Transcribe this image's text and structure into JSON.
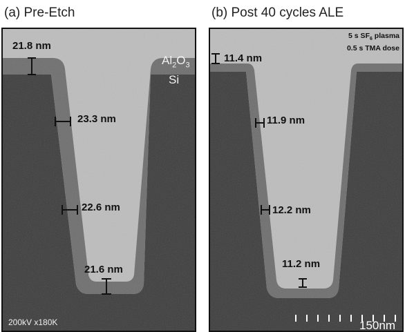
{
  "panel_a": {
    "title": "(a) Pre-Etch",
    "measurements": [
      "21.8 nm",
      "23.3 nm",
      "22.6 nm",
      "21.6 nm"
    ],
    "material_top": "Al",
    "material_top_sub1": "2",
    "material_top_mid": "O",
    "material_top_sub2": "3",
    "material_bottom": "Si",
    "info": "200kV x180K"
  },
  "panel_b": {
    "title": "(b) Post 40 cycles ALE",
    "measurements": [
      "11.4 nm",
      "11.9 nm",
      "12.2 nm",
      "11.2 nm"
    ],
    "note_line1_pre": "5 s SF",
    "note_line1_sub": "6",
    "note_line1_post": " plasma",
    "note_line2": "0.5 s TMA dose",
    "scale_label": "150nm"
  },
  "colors": {
    "substrate": "#3d3d3d",
    "coating": "#6e6e6e",
    "vacuum": "#bdbdbd"
  }
}
